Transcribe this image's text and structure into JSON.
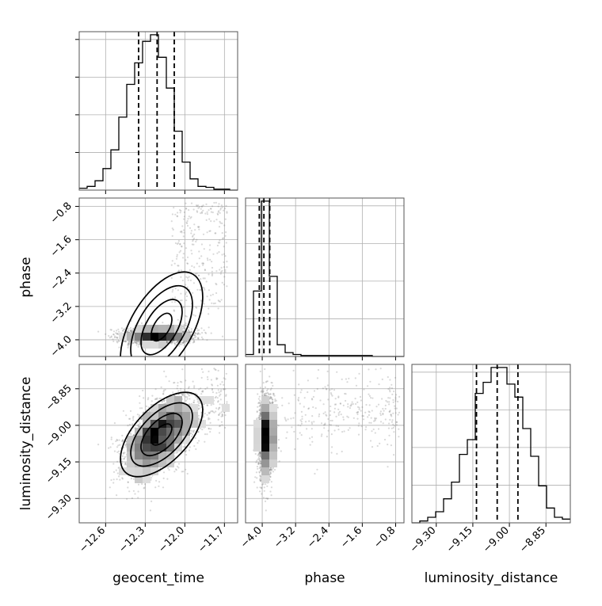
{
  "chart_data": {
    "type": "corner",
    "parameters": [
      "geocent_time",
      "phase",
      "luminosity_distance"
    ],
    "labels": {
      "geocent_time": "geocent_time",
      "phase": "phase",
      "luminosity_distance": "luminosity_distance"
    },
    "ranges": {
      "geocent_time": [
        -12.8,
        -11.6
      ],
      "phase": [
        -4.4,
        -0.6
      ],
      "luminosity_distance": [
        -9.4,
        -8.75
      ]
    },
    "ticks": {
      "geocent_time": [
        "-12.6",
        "-12.3",
        "-12.0",
        "-11.7"
      ],
      "phase": [
        "-4.0",
        "-3.2",
        "-2.4",
        "-1.6",
        "-0.8"
      ],
      "luminosity_distance": [
        "-9.30",
        "-9.15",
        "-9.00",
        "-8.85"
      ]
    },
    "quantiles": {
      "geocent_time": [
        -12.35,
        -12.21,
        -12.08
      ],
      "phase": [
        -4.07,
        -3.96,
        -3.82
      ],
      "luminosity_distance": [
        -9.135,
        -9.05,
        -8.965
      ]
    },
    "histograms": {
      "geocent_time": {
        "bins": [
          -12.8,
          -12.74,
          -12.68,
          -12.62,
          -12.56,
          -12.5,
          -12.44,
          -12.38,
          -12.32,
          -12.26,
          -12.2,
          -12.14,
          -12.08,
          -12.02,
          -11.96,
          -11.9,
          -11.84,
          -11.78,
          -11.72,
          -11.66,
          -11.6
        ],
        "counts": [
          2,
          4,
          10,
          23,
          43,
          78,
          113,
          136,
          159,
          166,
          142,
          109,
          63,
          30,
          12,
          4,
          3,
          1,
          1,
          0
        ]
      },
      "phase": {
        "bins": [
          -4.4,
          -4.21,
          -4.02,
          -3.83,
          -3.64,
          -3.45,
          -3.26,
          -3.07,
          -2.88,
          -2.69,
          -2.5,
          -2.31,
          -2.12,
          -1.93,
          -1.74,
          -1.55,
          -1.36,
          -1.17,
          -0.98,
          -0.79,
          -0.6
        ],
        "counts": [
          2,
          67,
          159,
          82,
          12,
          4,
          2,
          1,
          1,
          1,
          1,
          1,
          1,
          1,
          1,
          1,
          0,
          0,
          0,
          0
        ]
      },
      "luminosity_distance": {
        "bins": [
          -9.4,
          -9.3675,
          -9.335,
          -9.3025,
          -9.27,
          -9.2375,
          -9.205,
          -9.1725,
          -9.14,
          -9.1075,
          -9.075,
          -9.0425,
          -9.01,
          -8.9775,
          -8.945,
          -8.9125,
          -8.88,
          -8.8475,
          -8.815,
          -8.7825,
          -8.75
        ],
        "counts": [
          0,
          1,
          3,
          6,
          13,
          22,
          37,
          45,
          70,
          76,
          84,
          84,
          75,
          68,
          51,
          36,
          20,
          8,
          3,
          2
        ]
      }
    },
    "contour_levels": [
      "0.118",
      "0.393",
      "0.675",
      "0.864"
    ],
    "grid": true
  }
}
